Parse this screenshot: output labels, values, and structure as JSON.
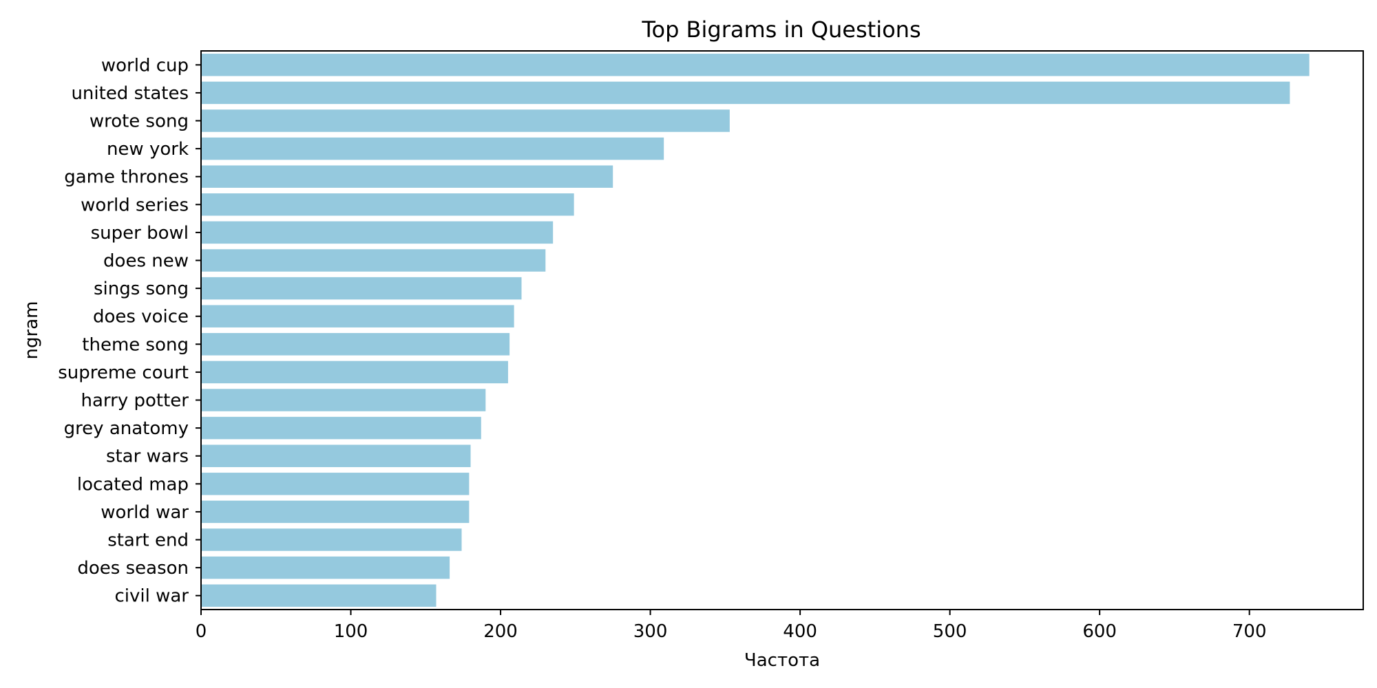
{
  "chart_data": {
    "type": "bar",
    "orientation": "horizontal",
    "title": "Top Bigrams in Questions",
    "xlabel": "Частота",
    "ylabel": "ngram",
    "xlim": [
      0,
      776
    ],
    "x_ticks": [
      0,
      100,
      200,
      300,
      400,
      500,
      600,
      700
    ],
    "grid": false,
    "bar_color": "#95c9de",
    "categories": [
      "world cup",
      "united states",
      "wrote song",
      "new york",
      "game thrones",
      "world series",
      "super bowl",
      "does new",
      "sings song",
      "does voice",
      "theme song",
      "supreme court",
      "harry potter",
      "grey anatomy",
      "star wars",
      "located map",
      "world war",
      "start end",
      "does season",
      "civil war"
    ],
    "values": [
      740,
      727,
      353,
      309,
      275,
      249,
      235,
      230,
      214,
      209,
      206,
      205,
      190,
      187,
      180,
      179,
      179,
      174,
      166,
      157
    ]
  }
}
